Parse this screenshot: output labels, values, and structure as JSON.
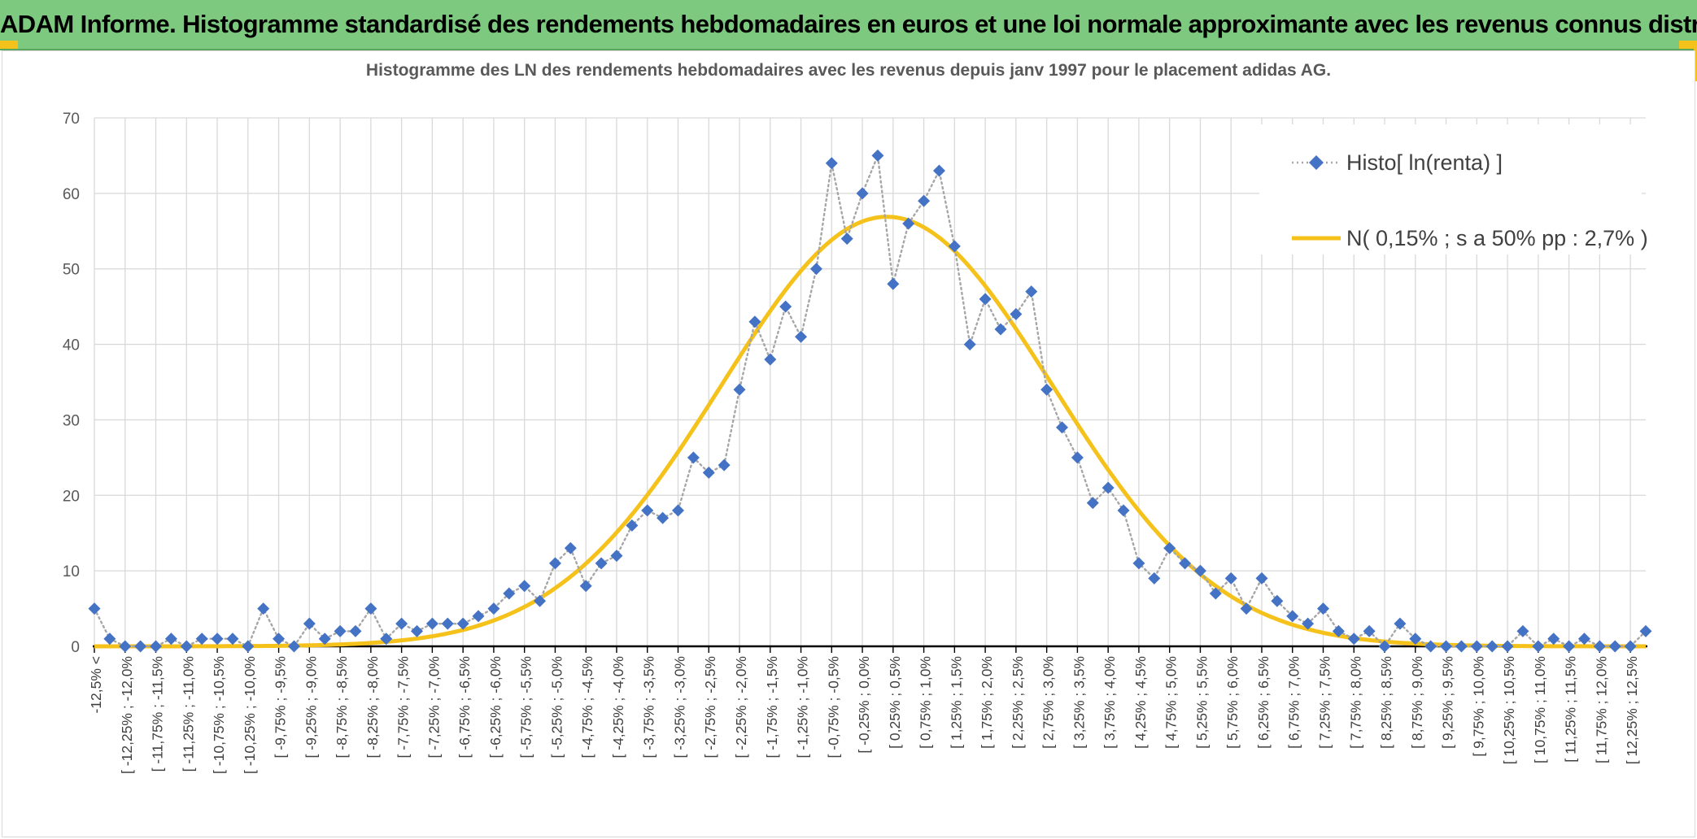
{
  "banner": {
    "title": "ADAM Informe. Histogramme standardisé des rendements hebdomadaires en euros et une loi normale approximante avec les revenus connus distribués"
  },
  "colors": {
    "banner_bg": "#7dc97f",
    "accent_yellow": "#f5c11b",
    "series_marker": "#4472c4",
    "series_line": "#a6a6a6",
    "normal_curve": "#f5c11b",
    "grid": "#d9d9d9"
  },
  "chart_data": {
    "type": "line",
    "title": "Histogramme des LN des rendements hebdomadaires avec les revenus depuis janv 1997 pour le placement adidas AG.",
    "xlabel": "",
    "ylabel": "",
    "ylim": [
      0,
      70
    ],
    "yticks": [
      0,
      10,
      20,
      30,
      40,
      50,
      60,
      70
    ],
    "grid": true,
    "legend_position": "top-right",
    "categories": [
      "-12,5% <",
      "",
      "[ -12,25% ; -12,0%",
      "",
      "[ -11,75% ; -11,5%",
      "",
      "[ -11,25% ; -11,0%",
      "",
      "[ -10,75% ; -10,5%",
      "",
      "[ -10,25% ; -10,0%",
      "",
      "[ -9,75% ; -9,5%",
      "",
      "[ -9,25% ; -9,0%",
      "",
      "[ -8,75% ; -8,5%",
      "",
      "[ -8,25% ; -8,0%",
      "",
      "[ -7,75% ; -7,5%",
      "",
      "[ -7,25% ; -7,0%",
      "",
      "[ -6,75% ; -6,5%",
      "",
      "[ -6,25% ; -6,0%",
      "",
      "[ -5,75% ; -5,5%",
      "",
      "[ -5,25% ; -5,0%",
      "",
      "[ -4,75% ; -4,5%",
      "",
      "[ -4,25% ; -4,0%",
      "",
      "[ -3,75% ; -3,5%",
      "",
      "[ -3,25% ; -3,0%",
      "",
      "[ -2,75% ; -2,5%",
      "",
      "[ -2,25% ; -2,0%",
      "",
      "[ -1,75% ; -1,5%",
      "",
      "[ -1,25% ; -1,0%",
      "",
      "[ -0,75% ; -0,5%",
      "",
      "[ -0,25% ; 0,0%",
      "",
      "[ 0,25% ; 0,5%",
      "",
      "[ 0,75% ; 1,0%",
      "",
      "[ 1,25% ; 1,5%",
      "",
      "[ 1,75% ; 2,0%",
      "",
      "[ 2,25% ; 2,5%",
      "",
      "[ 2,75% ; 3,0%",
      "",
      "[ 3,25% ; 3,5%",
      "",
      "[ 3,75% ; 4,0%",
      "",
      "[ 4,25% ; 4,5%",
      "",
      "[ 4,75% ; 5,0%",
      "",
      "[ 5,25% ; 5,5%",
      "",
      "[ 5,75% ; 6,0%",
      "",
      "[ 6,25% ; 6,5%",
      "",
      "[ 6,75% ; 7,0%",
      "",
      "[ 7,25% ; 7,5%",
      "",
      "[ 7,75% ; 8,0%",
      "",
      "[ 8,25% ; 8,5%",
      "",
      "[ 8,75% ; 9,0%",
      "",
      "[ 9,25% ; 9,5%",
      "",
      "[ 9,75% ; 10,0%",
      "",
      "[ 10,25% ; 10,5%",
      "",
      "[ 10,75% ; 11,0%",
      "",
      "[ 11,25% ; 11,5%",
      "",
      "[ 11,75% ; 12,0%",
      "",
      "[ 12,25% ; 12,5%",
      ""
    ],
    "series": [
      {
        "name": "Histo[ ln(renta) ]",
        "style": "dotted-line-diamond-markers",
        "values": [
          5,
          1,
          0,
          0,
          0,
          1,
          0,
          1,
          1,
          1,
          0,
          5,
          1,
          0,
          3,
          1,
          2,
          2,
          5,
          1,
          3,
          2,
          3,
          3,
          3,
          4,
          5,
          7,
          8,
          6,
          11,
          13,
          8,
          11,
          12,
          16,
          18,
          17,
          18,
          25,
          23,
          24,
          34,
          43,
          38,
          45,
          41,
          50,
          64,
          54,
          60,
          65,
          48,
          56,
          59,
          63,
          53,
          40,
          46,
          42,
          44,
          47,
          34,
          29,
          25,
          19,
          21,
          18,
          11,
          9,
          13,
          11,
          10,
          7,
          9,
          5,
          9,
          6,
          4,
          3,
          5,
          2,
          1,
          2,
          0,
          3,
          1,
          0,
          0,
          0,
          0,
          0,
          0,
          2,
          0,
          1,
          0,
          1,
          0,
          0,
          0,
          2
        ]
      },
      {
        "name": "N( 0,15% ; s a 50% pp : 2,7% )",
        "style": "smooth-line",
        "mean_index": 51.6,
        "sd_index": 10.8,
        "peak": 56.9
      }
    ]
  }
}
